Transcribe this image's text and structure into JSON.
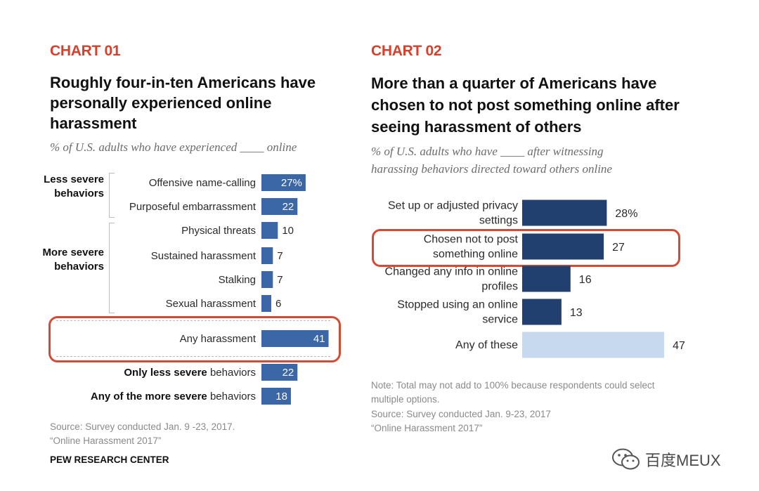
{
  "chart_data": [
    {
      "type": "bar",
      "tag": "CHART 01",
      "title": "Roughly four-in-ten Americans have personally experienced online harassment",
      "subtitle": "% of U.S. adults who have experienced ____ online",
      "groups": [
        {
          "label": "Less severe behaviors",
          "items": [
            "Offensive name-calling",
            "Purposeful embarrassment"
          ]
        },
        {
          "label": "More severe behaviors",
          "items": [
            "Physical threats",
            "Sustained harassment",
            "Stalking",
            "Sexual harassment"
          ]
        }
      ],
      "categories": [
        "Offensive name-calling",
        "Purposeful embarrassment",
        "Physical threats",
        "Sustained harassment",
        "Stalking",
        "Sexual harassment",
        "Any harassment",
        "Only less severe behaviors",
        "Any of the more severe behaviors"
      ],
      "category_display": [
        {
          "bold": "",
          "normal": "Offensive name-calling"
        },
        {
          "bold": "",
          "normal": "Purposeful embarrassment"
        },
        {
          "bold": "",
          "normal": "Physical threats"
        },
        {
          "bold": "",
          "normal": "Sustained harassment"
        },
        {
          "bold": "",
          "normal": "Stalking"
        },
        {
          "bold": "",
          "normal": "Sexual harassment"
        },
        {
          "bold": "",
          "normal": "Any harassment"
        },
        {
          "bold": "Only less severe",
          "normal": " behaviors"
        },
        {
          "bold": "Any of the more severe",
          "normal": " behaviors"
        }
      ],
      "values": [
        27,
        22,
        10,
        7,
        7,
        6,
        41,
        22,
        18
      ],
      "value_labels": [
        "27%",
        "22",
        "10",
        "7",
        "7",
        "6",
        "41",
        "22",
        "18"
      ],
      "highlighted": "Any harassment",
      "source": [
        "Source: Survey conducted Jan. 9 -23, 2017.",
        "“Online Harassment 2017”"
      ],
      "credit": "PEW RESEARCH CENTER",
      "colors": {
        "bar": "#3b67a6",
        "highlight": "#d64a34",
        "tag": "#d9402b"
      }
    },
    {
      "type": "bar",
      "tag": "CHART 02",
      "title": "More than a quarter of Americans have chosen to not post something online after seeing harassment of others",
      "subtitle": [
        "% of U.S. adults who have ____ after witnessing",
        "harassing behaviors directed toward others online"
      ],
      "categories": [
        "Set up or adjusted privacy settings",
        "Chosen not to post something online",
        "Changed any info in online profiles",
        "Stopped using an online service",
        "Any of these"
      ],
      "category_lines": [
        [
          "Set up or adjusted privacy",
          "settings"
        ],
        [
          "Chosen not to post",
          "something online"
        ],
        [
          "Changed any info in online",
          "profiles"
        ],
        [
          "Stopped using an online",
          "service"
        ],
        [
          "Any of these"
        ]
      ],
      "values": [
        28,
        27,
        16,
        13,
        47
      ],
      "value_labels": [
        "28%",
        "27",
        "16",
        "13",
        "47"
      ],
      "highlighted": "Chosen not to post something online",
      "note": [
        "Note: Total may not add to 100% because respondents could select",
        "multiple options.",
        "Source: Survey conducted Jan. 9-23, 2017",
        "“Online Harassment 2017”"
      ],
      "colors": {
        "bar": "#22406f",
        "total_bar": "#c7d9ef",
        "highlight": "#d64a34",
        "tag": "#d9402b"
      }
    }
  ],
  "watermark": {
    "icon": "wechat-icon",
    "text": "百度MEUX"
  }
}
